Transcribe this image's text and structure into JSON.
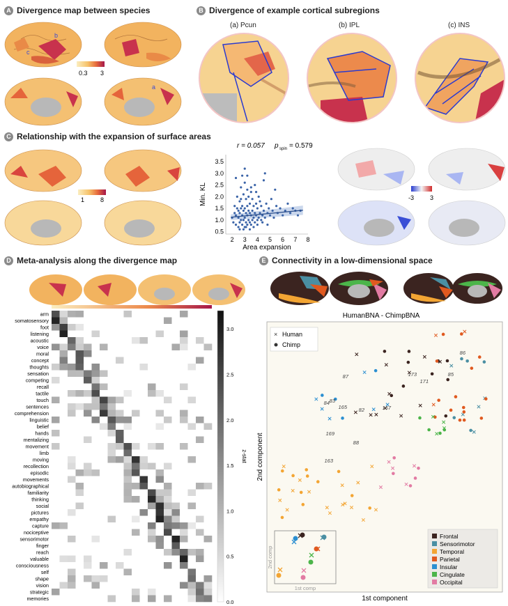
{
  "panels": {
    "A": {
      "badge": "A",
      "title": "Divergence map between species",
      "scale_min": "0.3",
      "scale_max": "3",
      "labels": [
        "b",
        "c",
        "a"
      ]
    },
    "B": {
      "badge": "B",
      "title": "Divergence of example cortical subregions",
      "subs": [
        "(a) Pcun",
        "(b) IPL",
        "(c) INS"
      ]
    },
    "C": {
      "badge": "C",
      "title": "Relationship with the expansion of surface areas",
      "scale_min": "1",
      "scale_max": "8",
      "corr_scale_min": "-3",
      "corr_scale_max": "3"
    },
    "D": {
      "badge": "D",
      "title": "Meta-analysis along the divergence map"
    },
    "E": {
      "badge": "E",
      "title": "Connectivity in a low-dimensional space"
    }
  },
  "colors": {
    "divergence_low": "#fbe7a8",
    "divergence_high": "#b2184a",
    "frontal": "#3b2420",
    "sensorimotor": "#4a8fa3",
    "temporal": "#f3a533",
    "parietal": "#e0591f",
    "insular": "#2b8fd1",
    "cingulate": "#4cb54a",
    "occipital": "#e27ba3"
  },
  "chart_data": [
    {
      "type": "scatter",
      "id": "C-scatter",
      "xlabel": "Area expansion",
      "ylabel": "Min. KL",
      "annotation_r": "r = 0.057",
      "annotation_p_label": "p",
      "annotation_p_sub": "spin",
      "annotation_p_value": "= 0.579",
      "xlim": [
        1.5,
        8
      ],
      "ylim": [
        0.4,
        3.8
      ],
      "xticks": [
        "2",
        "3",
        "4",
        "5",
        "6",
        "7",
        "8"
      ],
      "yticks": [
        "0.5",
        "1.0",
        "1.5",
        "2.0",
        "2.5",
        "3.0",
        "3.5"
      ],
      "fit": {
        "x": [
          1.9,
          7.6
        ],
        "y": [
          1.12,
          1.42
        ]
      },
      "x": [
        2.0,
        2.1,
        2.2,
        2.2,
        2.3,
        2.3,
        2.4,
        2.4,
        2.5,
        2.5,
        2.5,
        2.6,
        2.6,
        2.6,
        2.7,
        2.7,
        2.7,
        2.8,
        2.8,
        2.8,
        2.8,
        2.9,
        2.9,
        2.9,
        3.0,
        3.0,
        3.0,
        3.0,
        3.1,
        3.1,
        3.1,
        3.2,
        3.2,
        3.2,
        3.2,
        3.3,
        3.3,
        3.3,
        3.4,
        3.4,
        3.4,
        3.5,
        3.5,
        3.5,
        3.6,
        3.6,
        3.6,
        3.7,
        3.7,
        3.8,
        3.8,
        3.8,
        3.9,
        3.9,
        4.0,
        4.0,
        4.1,
        4.1,
        4.2,
        4.2,
        4.3,
        4.3,
        4.4,
        4.5,
        4.5,
        4.6,
        4.7,
        4.8,
        4.9,
        5.0,
        5.1,
        5.2,
        5.3,
        5.5,
        5.6,
        5.8,
        6.0,
        6.2,
        6.4,
        6.6,
        6.8,
        7.0,
        7.2,
        7.4,
        2.3,
        2.6,
        2.9,
        3.1,
        3.4,
        3.7,
        4.0,
        4.4,
        4.8,
        3.0,
        3.2,
        2.7,
        3.5,
        3.9,
        4.6,
        5.4
      ],
      "y": [
        1.1,
        0.9,
        1.3,
        1.6,
        0.8,
        1.2,
        1.5,
        2.0,
        0.7,
        1.1,
        1.4,
        0.9,
        1.3,
        1.8,
        1.0,
        1.5,
        2.4,
        0.8,
        1.2,
        1.6,
        2.9,
        1.0,
        1.4,
        2.1,
        0.7,
        1.1,
        1.5,
        2.6,
        0.9,
        1.3,
        1.9,
        0.8,
        1.2,
        1.6,
        2.3,
        1.0,
        1.4,
        2.0,
        0.9,
        1.3,
        1.7,
        0.8,
        1.2,
        2.2,
        1.0,
        1.4,
        1.9,
        1.1,
        1.6,
        0.9,
        1.3,
        2.5,
        1.2,
        1.7,
        1.0,
        1.5,
        1.1,
        2.0,
        1.3,
        1.8,
        1.0,
        1.6,
        1.2,
        1.4,
        2.7,
        1.1,
        1.7,
        1.3,
        1.5,
        1.2,
        1.9,
        1.4,
        1.1,
        1.6,
        1.3,
        1.5,
        1.2,
        1.4,
        1.7,
        1.3,
        1.5,
        1.4,
        1.2,
        1.4,
        2.8,
        0.6,
        0.6,
        0.7,
        0.6,
        0.7,
        0.8,
        0.9,
        0.8,
        3.2,
        2.9,
        1.9,
        2.4,
        2.2,
        3.0,
        2.3
      ]
    },
    {
      "type": "heatmap",
      "id": "D-heatmap",
      "colorbar_label": "z-stat",
      "colorbar_ticks": [
        "3.0",
        "2.5",
        "2.0",
        "1.5",
        "1.0",
        "0.5",
        "0.0"
      ],
      "vmin": 0,
      "vmax": 3.2,
      "rows": [
        "arm",
        "somatosensory",
        "foot",
        "listening",
        "acoustic",
        "voice",
        "moral",
        "concept",
        "thoughts",
        "sensation",
        "competing",
        "recall",
        "tactile",
        "touch",
        "sentences",
        "comprehension",
        "linguistic",
        "belief",
        "hands",
        "mentalizing",
        "movement",
        "limb",
        "moving",
        "recollection",
        "episodic",
        "movements",
        "autobiographical",
        "familiarity",
        "thinking",
        "social",
        "pictures",
        "empathy",
        "capture",
        "nociceptive",
        "sensorimotor",
        "finger",
        "reach",
        "valuable",
        "consciousness",
        "self",
        "shape",
        "vision",
        "strategic",
        "memories"
      ],
      "n_cols": 20
    },
    {
      "type": "scatter",
      "id": "E-scatter",
      "title": "HumanBNA - ChimpBNA",
      "xlabel": "1st component",
      "ylabel": "2nd component",
      "legend_markers": [
        "Human",
        "Chimp"
      ],
      "legend_groups": [
        "Frontal",
        "Sensorimotor",
        "Temporal",
        "Parietal",
        "Insular",
        "Cingulate",
        "Occipital"
      ],
      "point_labels": [
        "86",
        "173",
        "171",
        "85",
        "87",
        "84",
        "83",
        "165",
        "82",
        "167",
        "169",
        "88",
        "163"
      ],
      "inset_xlabel": "1st comp",
      "inset_ylabel": "2nd comp"
    }
  ]
}
